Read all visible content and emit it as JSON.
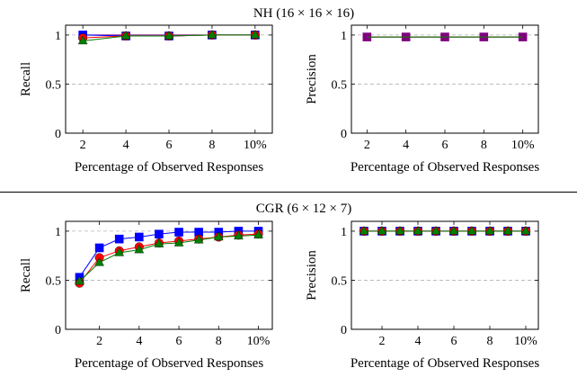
{
  "sections": [
    {
      "title": "NH (16 × 16 × 16)"
    },
    {
      "title": "CGR (6 × 12 × 7)"
    }
  ],
  "colors": {
    "blue": "#0000ff",
    "red": "#ff0000",
    "green": "#008000",
    "purple": "#800080",
    "grid": "#b3b3b3"
  },
  "chart_data": [
    {
      "type": "line",
      "section": 0,
      "ylabel": "Recall",
      "xlabel": "Percentage of Observed Responses",
      "xlim": [
        1.2,
        10.8
      ],
      "ylim": [
        0,
        1.1
      ],
      "xticks": [
        2,
        4,
        6,
        8,
        10
      ],
      "xticklabels": [
        "2",
        "4",
        "6",
        "8",
        "10%"
      ],
      "yticks": [
        0,
        0.5,
        1
      ],
      "yticklabels": [
        "0",
        "0.5",
        "1"
      ],
      "grid": "horizontal-dashed",
      "series": [
        {
          "color": "purple",
          "marker": "none",
          "x": [
            2,
            4,
            6,
            8,
            10
          ],
          "y": [
            1,
            1,
            1,
            1,
            1
          ]
        },
        {
          "color": "blue",
          "marker": "square",
          "x": [
            2,
            4,
            6,
            8,
            10
          ],
          "y": [
            1,
            0.99,
            0.99,
            1,
            1
          ]
        },
        {
          "color": "red",
          "marker": "circle",
          "x": [
            2,
            4,
            6,
            8,
            10
          ],
          "y": [
            0.97,
            0.99,
            0.99,
            1,
            1
          ]
        },
        {
          "color": "green",
          "marker": "triangle",
          "x": [
            2,
            4,
            6,
            8,
            10
          ],
          "y": [
            0.94,
            0.99,
            0.99,
            1,
            1
          ]
        }
      ]
    },
    {
      "type": "line",
      "section": 0,
      "ylabel": "Precision",
      "xlabel": "Percentage of Observed Responses",
      "xlim": [
        1.2,
        10.8
      ],
      "ylim": [
        0,
        1.1
      ],
      "xticks": [
        2,
        4,
        6,
        8,
        10
      ],
      "xticklabels": [
        "2",
        "4",
        "6",
        "8",
        "10%"
      ],
      "yticks": [
        0,
        0.5,
        1
      ],
      "yticklabels": [
        "0",
        "0.5",
        "1"
      ],
      "grid": "horizontal-dashed",
      "series": [
        {
          "color": "purple",
          "marker": "square",
          "x": [
            2,
            4,
            6,
            8,
            10
          ],
          "y": [
            0.98,
            0.98,
            0.98,
            0.98,
            0.98
          ]
        },
        {
          "color": "blue",
          "marker": "none",
          "x": [
            2,
            4,
            6,
            8,
            10
          ],
          "y": [
            0.98,
            0.98,
            0.98,
            0.98,
            0.98
          ]
        },
        {
          "color": "red",
          "marker": "none",
          "x": [
            2,
            4,
            6,
            8,
            10
          ],
          "y": [
            0.98,
            0.98,
            0.98,
            0.98,
            0.98
          ]
        },
        {
          "color": "green",
          "marker": "none",
          "x": [
            2,
            4,
            6,
            8,
            10
          ],
          "y": [
            0.98,
            0.98,
            0.98,
            0.98,
            0.98
          ]
        }
      ]
    },
    {
      "type": "line",
      "section": 1,
      "ylabel": "Recall",
      "xlabel": "Percentage of Observed Responses",
      "xlim": [
        0.3,
        10.7
      ],
      "ylim": [
        0,
        1.1
      ],
      "xticks": [
        2,
        4,
        6,
        8,
        10
      ],
      "xticklabels": [
        "2",
        "4",
        "6",
        "8",
        "10%"
      ],
      "yticks": [
        0,
        0.5,
        1
      ],
      "yticklabels": [
        "0",
        "0.5",
        "1"
      ],
      "grid": "horizontal-dashed",
      "series": [
        {
          "color": "blue",
          "marker": "square",
          "x": [
            1,
            2,
            3,
            4,
            5,
            6,
            7,
            8,
            9,
            10
          ],
          "y": [
            0.53,
            0.83,
            0.92,
            0.94,
            0.97,
            0.99,
            0.99,
            0.99,
            1.0,
            1.0
          ]
        },
        {
          "color": "red",
          "marker": "circle",
          "x": [
            1,
            2,
            3,
            4,
            5,
            6,
            7,
            8,
            9,
            10
          ],
          "y": [
            0.47,
            0.73,
            0.8,
            0.84,
            0.88,
            0.9,
            0.92,
            0.94,
            0.96,
            0.97
          ]
        },
        {
          "color": "green",
          "marker": "triangle",
          "x": [
            1,
            2,
            3,
            4,
            5,
            6,
            7,
            8,
            9,
            10
          ],
          "y": [
            0.49,
            0.68,
            0.78,
            0.81,
            0.87,
            0.88,
            0.91,
            0.94,
            0.95,
            0.96
          ]
        }
      ]
    },
    {
      "type": "line",
      "section": 1,
      "ylabel": "Precision",
      "xlabel": "Percentage of Observed Responses",
      "xlim": [
        0.3,
        10.7
      ],
      "ylim": [
        0,
        1.1
      ],
      "xticks": [
        2,
        4,
        6,
        8,
        10
      ],
      "xticklabels": [
        "2",
        "4",
        "6",
        "8",
        "10%"
      ],
      "yticks": [
        0,
        0.5,
        1
      ],
      "yticklabels": [
        "0",
        "0.5",
        "1"
      ],
      "grid": "horizontal-dashed",
      "series": [
        {
          "color": "blue",
          "marker": "square",
          "x": [
            1,
            2,
            3,
            4,
            5,
            6,
            7,
            8,
            9,
            10
          ],
          "y": [
            1,
            1,
            1,
            1,
            1,
            1,
            1,
            1,
            1,
            1
          ]
        },
        {
          "color": "red",
          "marker": "circle",
          "x": [
            1,
            2,
            3,
            4,
            5,
            6,
            7,
            8,
            9,
            10
          ],
          "y": [
            1,
            1,
            1,
            1,
            1,
            1,
            1,
            1,
            1,
            1
          ]
        },
        {
          "color": "green",
          "marker": "triangle",
          "x": [
            1,
            2,
            3,
            4,
            5,
            6,
            7,
            8,
            9,
            10
          ],
          "y": [
            1,
            1,
            1,
            1,
            1,
            1,
            1,
            1,
            1,
            1
          ]
        }
      ]
    }
  ]
}
